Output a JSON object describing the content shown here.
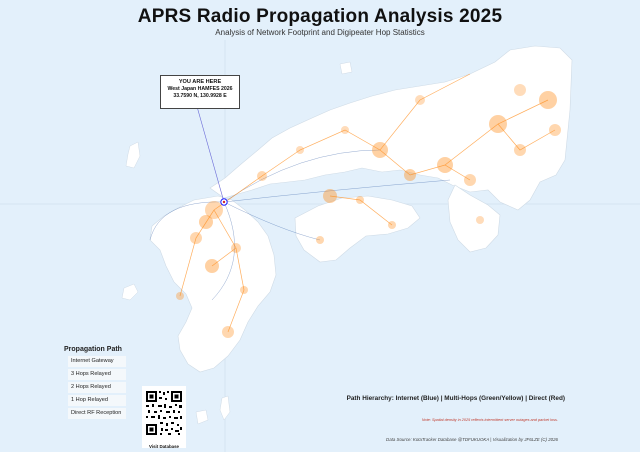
{
  "header": {
    "title": "APRS Radio Propagation Analysis 2025",
    "subtitle": "Analysis of Network Footprint and Digipeater Hop Statistics"
  },
  "callout": {
    "heading": "YOU ARE HERE",
    "event": "West Japan HAMFES 2026",
    "coordinates": "33.7590 N, 130.9928 E"
  },
  "legend": {
    "title": "Propagation Path",
    "items": [
      {
        "label": "Internet Gateway",
        "color": "#1f4e9c"
      },
      {
        "label": "3 Hops Relayed",
        "color": "#2e8b57"
      },
      {
        "label": "2 Hops Relayed",
        "color": "#f1c40f"
      },
      {
        "label": "1 Hop Relayed",
        "color": "#ff8c1a"
      },
      {
        "label": "Direct RF Reception",
        "color": "#d62728"
      }
    ]
  },
  "qr": {
    "label": "Visit Database"
  },
  "footer": {
    "hierarchy": "Path Hierarchy: Internet (Blue) | Multi-Hops (Green/Yellow) | Direct (Red)",
    "note": "Note: Spatial density in 2025 reflects intermittent server outages and packet loss.",
    "source": "Data Source: KotaTracker Database @TDFUKUOKA | Visualization by JF6LZE (C) 2026"
  },
  "colors": {
    "background": "#e3f0fb",
    "land": "#ffffff",
    "density": "#ff8c1a",
    "internet": "#1f4e9c",
    "marker": "#1a1aff"
  }
}
